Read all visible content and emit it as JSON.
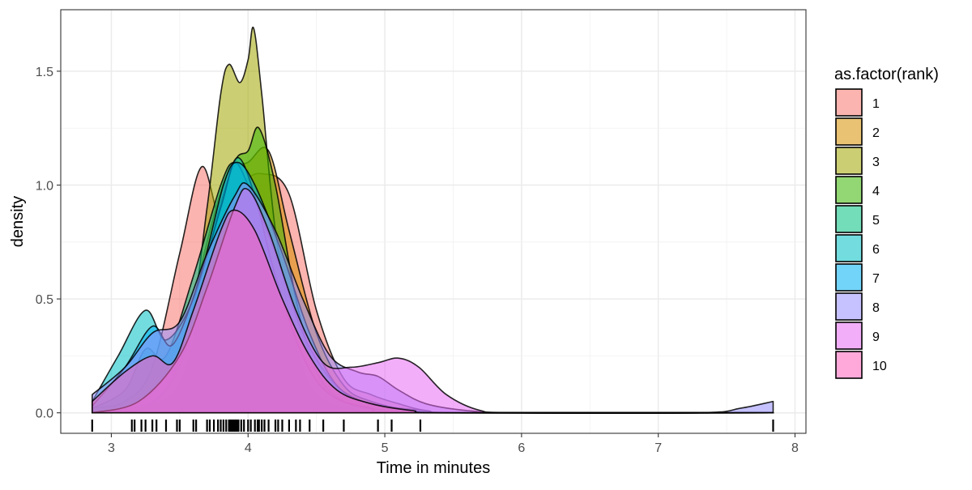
{
  "chart_data": {
    "type": "area",
    "subtype": "density",
    "title": "",
    "xlabel": "Time in minutes",
    "ylabel": "density",
    "xlim": [
      2.63,
      8.08
    ],
    "ylim": [
      -0.09,
      1.77
    ],
    "x_ticks": [
      3,
      4,
      5,
      6,
      7,
      8
    ],
    "y_ticks": [
      0.0,
      0.5,
      1.0,
      1.5
    ],
    "y_tick_labels": [
      "0.0",
      "0.5",
      "1.0",
      "1.5"
    ],
    "grid": true,
    "legend": {
      "title": "as.factor(rank)",
      "position": "right"
    },
    "series": [
      {
        "name": "1",
        "color": "#F8766D",
        "points": [
          [
            2.86,
            0.02
          ],
          [
            3.1,
            0.05
          ],
          [
            3.3,
            0.2
          ],
          [
            3.5,
            0.7
          ],
          [
            3.66,
            1.08
          ],
          [
            3.8,
            0.85
          ],
          [
            3.95,
            1.0
          ],
          [
            4.1,
            1.05
          ],
          [
            4.3,
            0.96
          ],
          [
            4.5,
            0.45
          ],
          [
            4.7,
            0.15
          ],
          [
            4.9,
            0.08
          ],
          [
            5.1,
            0.04
          ],
          [
            5.3,
            0.01
          ],
          [
            5.6,
            0.0
          ],
          [
            7.84,
            0.0
          ]
        ]
      },
      {
        "name": "2",
        "color": "#D89000",
        "points": [
          [
            2.86,
            0.0
          ],
          [
            3.3,
            0.05
          ],
          [
            3.5,
            0.25
          ],
          [
            3.7,
            0.75
          ],
          [
            3.85,
            1.05
          ],
          [
            4.0,
            1.1
          ],
          [
            4.15,
            1.15
          ],
          [
            4.3,
            0.8
          ],
          [
            4.5,
            0.35
          ],
          [
            4.7,
            0.12
          ],
          [
            4.9,
            0.05
          ],
          [
            5.2,
            0.01
          ],
          [
            5.5,
            0.0
          ],
          [
            7.84,
            0.0
          ]
        ]
      },
      {
        "name": "3",
        "color": "#A3A500",
        "points": [
          [
            2.86,
            0.0
          ],
          [
            3.3,
            0.04
          ],
          [
            3.55,
            0.3
          ],
          [
            3.7,
            0.9
          ],
          [
            3.8,
            1.4
          ],
          [
            3.86,
            1.53
          ],
          [
            3.94,
            1.45
          ],
          [
            4.0,
            1.55
          ],
          [
            4.04,
            1.69
          ],
          [
            4.1,
            1.4
          ],
          [
            4.2,
            0.8
          ],
          [
            4.35,
            0.3
          ],
          [
            4.5,
            0.08
          ],
          [
            4.8,
            0.01
          ],
          [
            5.0,
            0.0
          ],
          [
            7.84,
            0.0
          ]
        ]
      },
      {
        "name": "4",
        "color": "#39B600",
        "points": [
          [
            2.86,
            0.0
          ],
          [
            3.3,
            0.03
          ],
          [
            3.55,
            0.2
          ],
          [
            3.75,
            0.8
          ],
          [
            3.9,
            1.1
          ],
          [
            4.0,
            1.15
          ],
          [
            4.08,
            1.25
          ],
          [
            4.2,
            1.0
          ],
          [
            4.35,
            0.5
          ],
          [
            4.5,
            0.18
          ],
          [
            4.7,
            0.05
          ],
          [
            5.0,
            0.01
          ],
          [
            5.3,
            0.0
          ],
          [
            7.84,
            0.0
          ]
        ]
      },
      {
        "name": "5",
        "color": "#00BF7D",
        "points": [
          [
            2.86,
            0.02
          ],
          [
            3.1,
            0.1
          ],
          [
            3.25,
            0.28
          ],
          [
            3.4,
            0.25
          ],
          [
            3.6,
            0.6
          ],
          [
            3.8,
            1.0
          ],
          [
            3.9,
            1.1
          ],
          [
            4.0,
            1.0
          ],
          [
            4.2,
            0.7
          ],
          [
            4.4,
            0.35
          ],
          [
            4.6,
            0.15
          ],
          [
            4.8,
            0.06
          ],
          [
            5.1,
            0.02
          ],
          [
            5.5,
            0.0
          ],
          [
            7.84,
            0.0
          ]
        ]
      },
      {
        "name": "6",
        "color": "#00BFC4",
        "points": [
          [
            2.86,
            0.05
          ],
          [
            3.05,
            0.25
          ],
          [
            3.25,
            0.45
          ],
          [
            3.4,
            0.32
          ],
          [
            3.6,
            0.5
          ],
          [
            3.8,
            0.9
          ],
          [
            3.92,
            1.12
          ],
          [
            4.05,
            0.95
          ],
          [
            4.2,
            0.6
          ],
          [
            4.4,
            0.25
          ],
          [
            4.6,
            0.08
          ],
          [
            4.9,
            0.02
          ],
          [
            5.2,
            0.0
          ],
          [
            7.84,
            0.0
          ]
        ]
      },
      {
        "name": "7",
        "color": "#00B0F6",
        "points": [
          [
            2.86,
            0.03
          ],
          [
            3.1,
            0.2
          ],
          [
            3.3,
            0.38
          ],
          [
            3.45,
            0.3
          ],
          [
            3.65,
            0.6
          ],
          [
            3.82,
            1.0
          ],
          [
            3.92,
            1.1
          ],
          [
            4.05,
            1.0
          ],
          [
            4.25,
            0.7
          ],
          [
            4.45,
            0.35
          ],
          [
            4.65,
            0.12
          ],
          [
            4.9,
            0.04
          ],
          [
            5.3,
            0.01
          ],
          [
            5.6,
            0.0
          ],
          [
            7.84,
            0.0
          ]
        ]
      },
      {
        "name": "8",
        "color": "#9590FF",
        "points": [
          [
            2.86,
            0.08
          ],
          [
            3.1,
            0.2
          ],
          [
            3.3,
            0.35
          ],
          [
            3.5,
            0.4
          ],
          [
            3.7,
            0.7
          ],
          [
            3.9,
            0.95
          ],
          [
            4.0,
            1.0
          ],
          [
            4.2,
            0.8
          ],
          [
            4.4,
            0.5
          ],
          [
            4.6,
            0.25
          ],
          [
            4.8,
            0.18
          ],
          [
            4.95,
            0.16
          ],
          [
            5.1,
            0.1
          ],
          [
            5.3,
            0.04
          ],
          [
            5.6,
            0.01
          ],
          [
            6.0,
            0.0
          ],
          [
            7.3,
            0.0
          ],
          [
            7.6,
            0.02
          ],
          [
            7.84,
            0.05
          ]
        ]
      },
      {
        "name": "9",
        "color": "#E76BF3",
        "points": [
          [
            2.86,
            0.0
          ],
          [
            3.2,
            0.05
          ],
          [
            3.5,
            0.25
          ],
          [
            3.7,
            0.55
          ],
          [
            3.9,
            0.9
          ],
          [
            4.0,
            0.98
          ],
          [
            4.15,
            0.8
          ],
          [
            4.35,
            0.45
          ],
          [
            4.55,
            0.22
          ],
          [
            4.75,
            0.2
          ],
          [
            4.95,
            0.22
          ],
          [
            5.1,
            0.24
          ],
          [
            5.25,
            0.2
          ],
          [
            5.45,
            0.08
          ],
          [
            5.7,
            0.01
          ],
          [
            6.0,
            0.0
          ],
          [
            7.84,
            0.0
          ]
        ]
      },
      {
        "name": "10",
        "color": "#FF62BC",
        "points": [
          [
            2.86,
            0.05
          ],
          [
            3.1,
            0.18
          ],
          [
            3.3,
            0.25
          ],
          [
            3.45,
            0.22
          ],
          [
            3.6,
            0.45
          ],
          [
            3.8,
            0.8
          ],
          [
            3.9,
            0.89
          ],
          [
            4.05,
            0.8
          ],
          [
            4.25,
            0.5
          ],
          [
            4.45,
            0.25
          ],
          [
            4.65,
            0.1
          ],
          [
            4.9,
            0.04
          ],
          [
            5.2,
            0.01
          ],
          [
            5.5,
            0.0
          ],
          [
            7.84,
            0.0
          ]
        ]
      }
    ],
    "rug_x": [
      2.86,
      3.15,
      3.17,
      3.22,
      3.25,
      3.3,
      3.33,
      3.4,
      3.48,
      3.5,
      3.6,
      3.62,
      3.7,
      3.72,
      3.75,
      3.78,
      3.8,
      3.82,
      3.84,
      3.86,
      3.87,
      3.88,
      3.89,
      3.9,
      3.91,
      3.92,
      3.93,
      3.95,
      3.97,
      4.0,
      4.02,
      4.05,
      4.07,
      4.08,
      4.1,
      4.12,
      4.15,
      4.2,
      4.22,
      4.25,
      4.3,
      4.35,
      4.38,
      4.45,
      4.55,
      4.7,
      4.95,
      5.05,
      5.26,
      7.84
    ]
  }
}
